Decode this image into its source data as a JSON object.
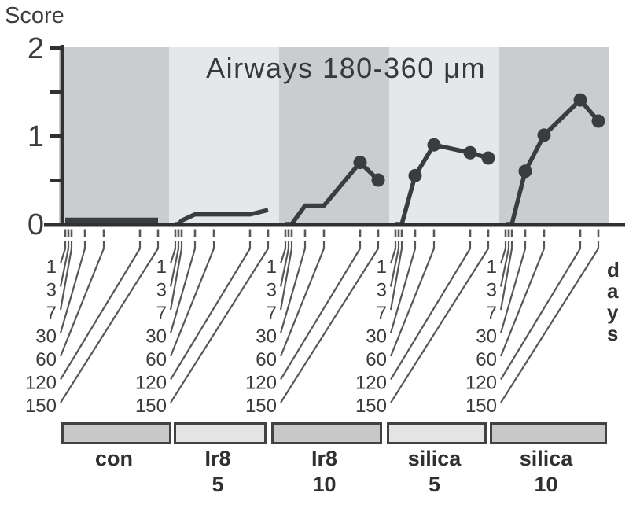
{
  "figure": {
    "score_axis_label": "Score",
    "title": "Airways 180-360 μm",
    "days_label": "days"
  },
  "chart_data": {
    "type": "line",
    "title": "Airways 180-360 μm",
    "ylabel": "Score",
    "xlabel": "days",
    "ylim": [
      0,
      2
    ],
    "ytick_labels": [
      2,
      1,
      0
    ],
    "ytick_minor": [
      1.5,
      0.5
    ],
    "x_categories_days": [
      1,
      3,
      7,
      30,
      60,
      120,
      150
    ],
    "grid": false,
    "legend_position": "bottom",
    "series": [
      {
        "name": "con",
        "dose": "",
        "band_shade": "dark",
        "values": [
          0.04,
          0.04,
          0.04,
          0.04,
          0.04,
          0.04,
          0.04
        ],
        "marker_days": [],
        "thick": true
      },
      {
        "name": "Ir8",
        "dose": "5",
        "band_shade": "light",
        "values": [
          0,
          0,
          0.04,
          0.11,
          0.11,
          0.11,
          0.16
        ],
        "marker_days": []
      },
      {
        "name": "Ir8",
        "dose": "10",
        "band_shade": "dark",
        "values": [
          0,
          0,
          0,
          0.21,
          0.21,
          0.7,
          0.5
        ],
        "marker_days": [
          120,
          150
        ]
      },
      {
        "name": "silica",
        "dose": "5",
        "band_shade": "light",
        "values": [
          0,
          0,
          0,
          0.55,
          0.9,
          0.81,
          0.75
        ],
        "marker_days": [
          30,
          60,
          120,
          150
        ]
      },
      {
        "name": "silica",
        "dose": "10",
        "band_shade": "dark",
        "values": [
          0,
          0,
          0,
          0.6,
          1.01,
          1.41,
          1.17
        ],
        "marker_days": [
          30,
          60,
          120,
          150
        ]
      }
    ],
    "colors": {
      "line": "#3a3c3e",
      "band_dark": "#cbccce",
      "band_light": "#e6e7e9",
      "legend_bar_dark": "#c6c8ca",
      "legend_bar_light": "#e3e4e6",
      "axis": "#2f3133",
      "text": "#3a3c3e",
      "leader": "#55575a"
    }
  }
}
